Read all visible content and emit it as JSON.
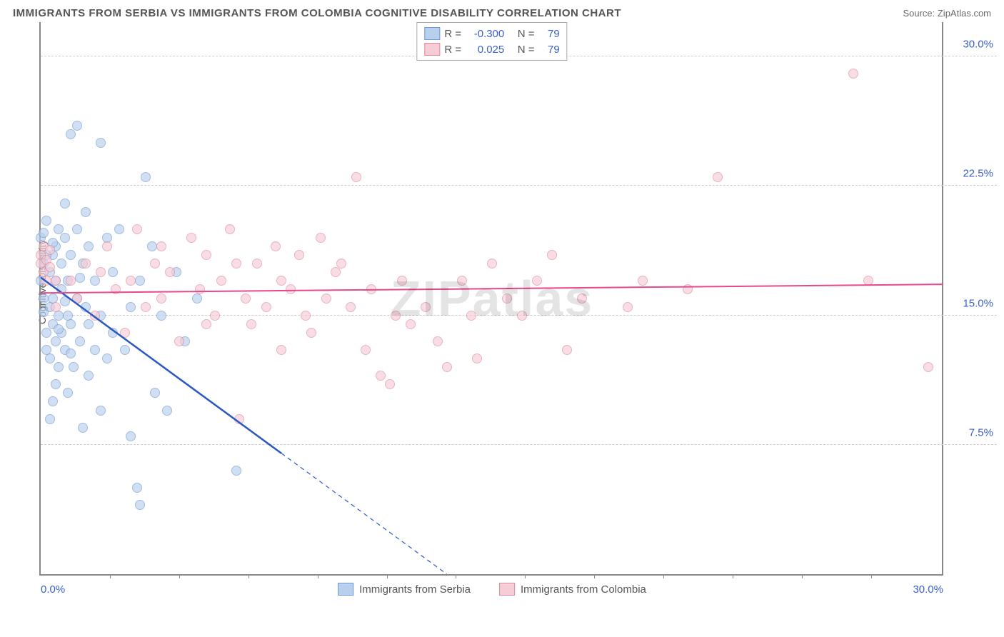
{
  "title": "IMMIGRANTS FROM SERBIA VS IMMIGRANTS FROM COLOMBIA COGNITIVE DISABILITY CORRELATION CHART",
  "source": "Source: ZipAtlas.com",
  "y_axis_label": "Cognitive Disability",
  "watermark": "ZIPatlas",
  "chart": {
    "type": "scatter",
    "xlim": [
      0,
      30
    ],
    "ylim": [
      0,
      32
    ],
    "x_ticks_labeled": [
      {
        "val": 0.0,
        "label": "0.0%"
      },
      {
        "val": 30.0,
        "label": "30.0%"
      }
    ],
    "x_ticks_minor": [
      2.3,
      4.6,
      6.9,
      9.2,
      11.5,
      13.8,
      16.1,
      18.4,
      20.7,
      23.0,
      25.3,
      27.6
    ],
    "y_ticks": [
      {
        "val": 7.5,
        "label": "7.5%"
      },
      {
        "val": 15.0,
        "label": "15.0%"
      },
      {
        "val": 22.5,
        "label": "22.5%"
      },
      {
        "val": 30.0,
        "label": "30.0%"
      }
    ],
    "background_color": "#ffffff",
    "grid_color": "#cccccc",
    "marker_radius": 7,
    "marker_stroke_width": 1.5,
    "series": [
      {
        "name": "Immigrants from Serbia",
        "key": "serbia",
        "fill": "#b9cfee",
        "stroke": "#6f98d4",
        "fill_opacity": 0.65,
        "line_color": "#2b57c5",
        "line_width": 2.5,
        "R": "-0.300",
        "N": "79",
        "trend": {
          "x1": 0,
          "y1": 17.2,
          "x2": 13.5,
          "y2": 0,
          "dash_after_x": 8.0
        },
        "points": [
          [
            0.0,
            19.5
          ],
          [
            0.0,
            17.0
          ],
          [
            0.1,
            16.0
          ],
          [
            0.1,
            18.0
          ],
          [
            0.1,
            15.2
          ],
          [
            0.1,
            19.8
          ],
          [
            0.2,
            14.0
          ],
          [
            0.2,
            20.5
          ],
          [
            0.2,
            13.0
          ],
          [
            0.3,
            17.5
          ],
          [
            0.3,
            15.5
          ],
          [
            0.3,
            12.5
          ],
          [
            0.3,
            9.0
          ],
          [
            0.4,
            18.5
          ],
          [
            0.4,
            16.0
          ],
          [
            0.4,
            14.5
          ],
          [
            0.4,
            10.0
          ],
          [
            0.5,
            19.0
          ],
          [
            0.5,
            17.0
          ],
          [
            0.5,
            13.5
          ],
          [
            0.5,
            11.0
          ],
          [
            0.6,
            15.0
          ],
          [
            0.6,
            20.0
          ],
          [
            0.6,
            12.0
          ],
          [
            0.7,
            18.0
          ],
          [
            0.7,
            16.5
          ],
          [
            0.7,
            14.0
          ],
          [
            0.8,
            19.5
          ],
          [
            0.8,
            21.5
          ],
          [
            0.8,
            13.0
          ],
          [
            0.9,
            17.0
          ],
          [
            0.9,
            15.0
          ],
          [
            0.9,
            10.5
          ],
          [
            1.0,
            25.5
          ],
          [
            1.0,
            18.5
          ],
          [
            1.0,
            14.5
          ],
          [
            1.1,
            12.0
          ],
          [
            1.2,
            26.0
          ],
          [
            1.2,
            20.0
          ],
          [
            1.2,
            16.0
          ],
          [
            1.3,
            13.5
          ],
          [
            1.4,
            18.0
          ],
          [
            1.4,
            8.5
          ],
          [
            1.5,
            21.0
          ],
          [
            1.5,
            15.5
          ],
          [
            1.6,
            19.0
          ],
          [
            1.6,
            11.5
          ],
          [
            1.8,
            17.0
          ],
          [
            1.8,
            13.0
          ],
          [
            2.0,
            25.0
          ],
          [
            2.0,
            9.5
          ],
          [
            2.0,
            15.0
          ],
          [
            2.2,
            19.5
          ],
          [
            2.2,
            12.5
          ],
          [
            2.4,
            17.5
          ],
          [
            2.4,
            14.0
          ],
          [
            2.6,
            20.0
          ],
          [
            2.8,
            13.0
          ],
          [
            3.0,
            8.0
          ],
          [
            3.0,
            15.5
          ],
          [
            3.2,
            5.0
          ],
          [
            3.3,
            17.0
          ],
          [
            3.3,
            4.0
          ],
          [
            3.5,
            23.0
          ],
          [
            3.7,
            19.0
          ],
          [
            3.8,
            10.5
          ],
          [
            4.0,
            15.0
          ],
          [
            4.2,
            9.5
          ],
          [
            4.5,
            17.5
          ],
          [
            4.8,
            13.5
          ],
          [
            5.2,
            16.0
          ],
          [
            6.5,
            6.0
          ],
          [
            0.2,
            18.5
          ],
          [
            0.4,
            19.2
          ],
          [
            0.6,
            14.2
          ],
          [
            0.8,
            15.8
          ],
          [
            1.0,
            12.8
          ],
          [
            1.3,
            17.2
          ],
          [
            1.6,
            14.5
          ]
        ]
      },
      {
        "name": "Immigrants from Colombia",
        "key": "colombia",
        "fill": "#f6ccd6",
        "stroke": "#e08aa0",
        "fill_opacity": 0.65,
        "line_color": "#e64a8a",
        "line_width": 2,
        "R": "0.025",
        "N": "79",
        "trend": {
          "x1": 0,
          "y1": 16.3,
          "x2": 30,
          "y2": 16.8,
          "dash_after_x": 999
        },
        "points": [
          [
            0.0,
            18.0
          ],
          [
            0.0,
            18.5
          ],
          [
            0.1,
            17.5
          ],
          [
            0.1,
            19.0
          ],
          [
            0.2,
            17.0
          ],
          [
            0.2,
            18.2
          ],
          [
            0.3,
            17.8
          ],
          [
            0.3,
            18.8
          ],
          [
            0.5,
            17.0
          ],
          [
            0.5,
            15.5
          ],
          [
            1.0,
            17.0
          ],
          [
            1.2,
            16.0
          ],
          [
            1.5,
            18.0
          ],
          [
            1.8,
            15.0
          ],
          [
            2.0,
            17.5
          ],
          [
            2.2,
            19.0
          ],
          [
            2.5,
            16.5
          ],
          [
            2.8,
            14.0
          ],
          [
            3.0,
            17.0
          ],
          [
            3.2,
            20.0
          ],
          [
            3.5,
            15.5
          ],
          [
            3.8,
            18.0
          ],
          [
            4.0,
            16.0
          ],
          [
            4.3,
            17.5
          ],
          [
            4.6,
            13.5
          ],
          [
            5.0,
            19.5
          ],
          [
            5.3,
            16.5
          ],
          [
            5.5,
            18.5
          ],
          [
            5.8,
            15.0
          ],
          [
            6.0,
            17.0
          ],
          [
            6.3,
            20.0
          ],
          [
            6.6,
            9.0
          ],
          [
            6.8,
            16.0
          ],
          [
            7.0,
            14.5
          ],
          [
            7.2,
            18.0
          ],
          [
            7.5,
            15.5
          ],
          [
            7.8,
            19.0
          ],
          [
            8.0,
            17.0
          ],
          [
            8.3,
            16.5
          ],
          [
            8.6,
            18.5
          ],
          [
            8.8,
            15.0
          ],
          [
            9.0,
            14.0
          ],
          [
            9.3,
            19.5
          ],
          [
            9.5,
            16.0
          ],
          [
            9.8,
            17.5
          ],
          [
            10.0,
            18.0
          ],
          [
            10.3,
            15.5
          ],
          [
            10.5,
            23.0
          ],
          [
            10.8,
            13.0
          ],
          [
            11.0,
            16.5
          ],
          [
            11.3,
            11.5
          ],
          [
            11.6,
            11.0
          ],
          [
            11.8,
            15.0
          ],
          [
            12.0,
            17.0
          ],
          [
            12.3,
            14.5
          ],
          [
            12.8,
            15.5
          ],
          [
            13.2,
            13.5
          ],
          [
            13.5,
            12.0
          ],
          [
            14.0,
            17.0
          ],
          [
            14.3,
            15.0
          ],
          [
            14.5,
            12.5
          ],
          [
            15.0,
            18.0
          ],
          [
            15.5,
            16.0
          ],
          [
            16.0,
            15.0
          ],
          [
            16.5,
            17.0
          ],
          [
            17.0,
            18.5
          ],
          [
            17.5,
            13.0
          ],
          [
            18.0,
            16.0
          ],
          [
            19.5,
            15.5
          ],
          [
            20.0,
            17.0
          ],
          [
            21.5,
            16.5
          ],
          [
            22.5,
            23.0
          ],
          [
            27.0,
            29.0
          ],
          [
            27.5,
            17.0
          ],
          [
            29.5,
            12.0
          ],
          [
            4.0,
            19.0
          ],
          [
            5.5,
            14.5
          ],
          [
            6.5,
            18.0
          ],
          [
            8.0,
            13.0
          ]
        ]
      }
    ]
  }
}
